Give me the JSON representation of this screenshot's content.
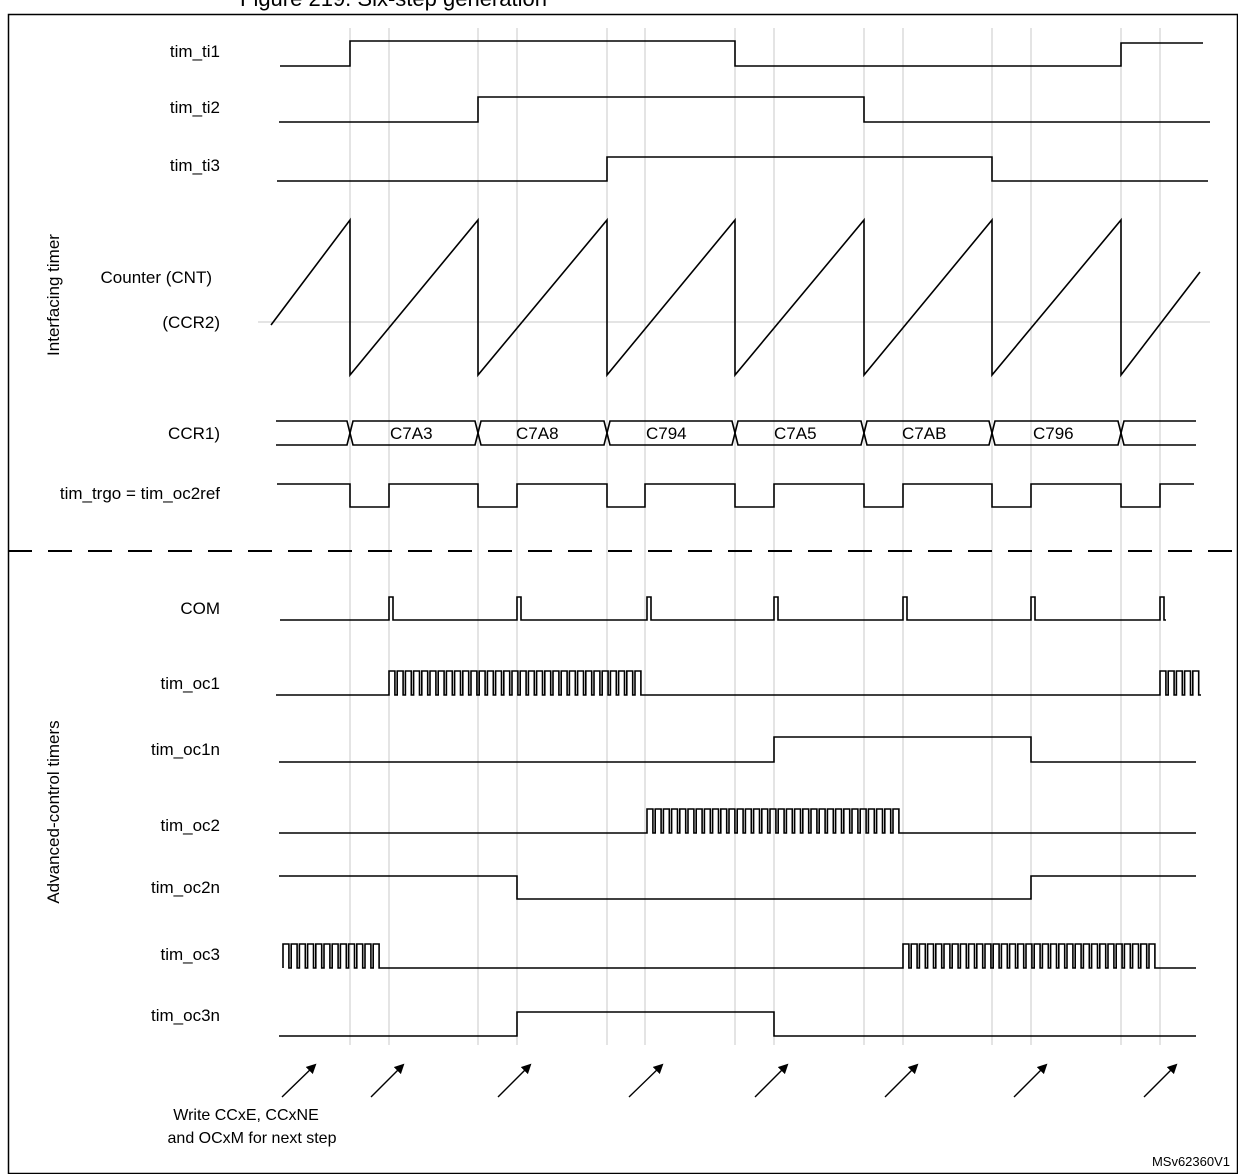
{
  "header_fragment": "Figure 219. Six-step generation",
  "sections": {
    "interfacing": "Interfacing timer",
    "advanced": "Advanced-control timers"
  },
  "signals": {
    "tim_ti1": "tim_ti1",
    "tim_ti2": "tim_ti2",
    "tim_ti3": "tim_ti3",
    "counter": "Counter (CNT)",
    "ccr2": "(CCR2)",
    "ccr1": "CCR1)",
    "trgo": "tim_trgo = tim_oc2ref",
    "com": "COM",
    "tim_oc1": "tim_oc1",
    "tim_oc1n": "tim_oc1n",
    "tim_oc2": "tim_oc2",
    "tim_oc2n": "tim_oc2n",
    "tim_oc3": "tim_oc3",
    "tim_oc3n": "tim_oc3n"
  },
  "ccr1_values": [
    "C7A3",
    "C7A8",
    "C794",
    "C7A5",
    "C7AB",
    "C796"
  ],
  "note": {
    "line1": "Write CCxE, CCxNE",
    "line2": "and OCxM for next step"
  },
  "reference": "MSv62360V1"
}
